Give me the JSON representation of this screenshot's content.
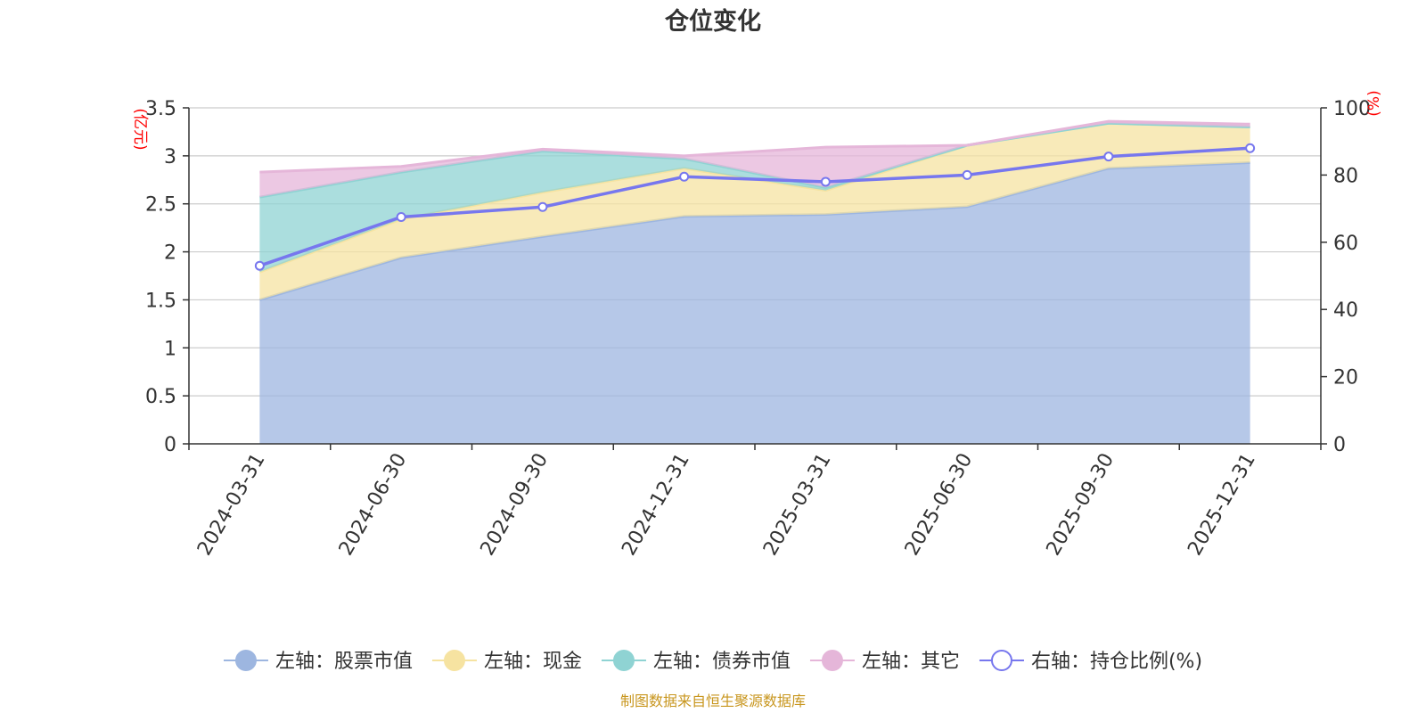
{
  "chart_data": {
    "type": "area",
    "title": "仓位变化",
    "categories": [
      "2024-03-31",
      "2024-06-30",
      "2024-09-30",
      "2024-12-31",
      "2025-03-31",
      "2025-06-30",
      "2025-09-30",
      "2025-12-31"
    ],
    "left_axis": {
      "unit": "(亿元)",
      "ylim": [
        0,
        3.5
      ],
      "ticks": [
        0,
        0.5,
        1,
        1.5,
        2,
        2.5,
        3,
        3.5
      ],
      "tick_labels": [
        "0",
        "0.5",
        "1",
        "1.5",
        "2",
        "2.5",
        "3",
        "3.5"
      ]
    },
    "right_axis": {
      "unit": "(%)",
      "ylim": [
        0,
        100
      ],
      "ticks": [
        0,
        20,
        40,
        60,
        80,
        100
      ],
      "tick_labels": [
        "0",
        "20",
        "40",
        "60",
        "80",
        "100"
      ]
    },
    "stacked_series": [
      {
        "name": "左轴：股票市值",
        "axis": "left",
        "color": "#9db6e0",
        "values": [
          1.5,
          1.94,
          2.16,
          2.37,
          2.39,
          2.47,
          2.87,
          2.93
        ]
      },
      {
        "name": "左轴：现金",
        "axis": "left",
        "color": "#f6e3a1",
        "values": [
          0.29,
          0.4,
          0.46,
          0.5,
          0.25,
          0.64,
          0.47,
          0.37
        ]
      },
      {
        "name": "左轴：债券市值",
        "axis": "left",
        "color": "#8fd3d3",
        "values": [
          0.78,
          0.49,
          0.43,
          0.1,
          0.03,
          0.0,
          0.0,
          0.0
        ]
      },
      {
        "name": "左轴：其它",
        "axis": "left",
        "color": "#e5b6d9",
        "values": [
          0.26,
          0.06,
          0.02,
          0.03,
          0.42,
          0.0,
          0.02,
          0.03
        ]
      }
    ],
    "line_series": {
      "name": "右轴：持仓比例(%)",
      "axis": "right",
      "color": "#7777ee",
      "values": [
        53.0,
        67.5,
        70.5,
        79.5,
        78.0,
        80.0,
        85.5,
        88.0
      ]
    },
    "legend_position": "bottom",
    "grid": true
  },
  "source_note": "制图数据来自恒生聚源数据库"
}
